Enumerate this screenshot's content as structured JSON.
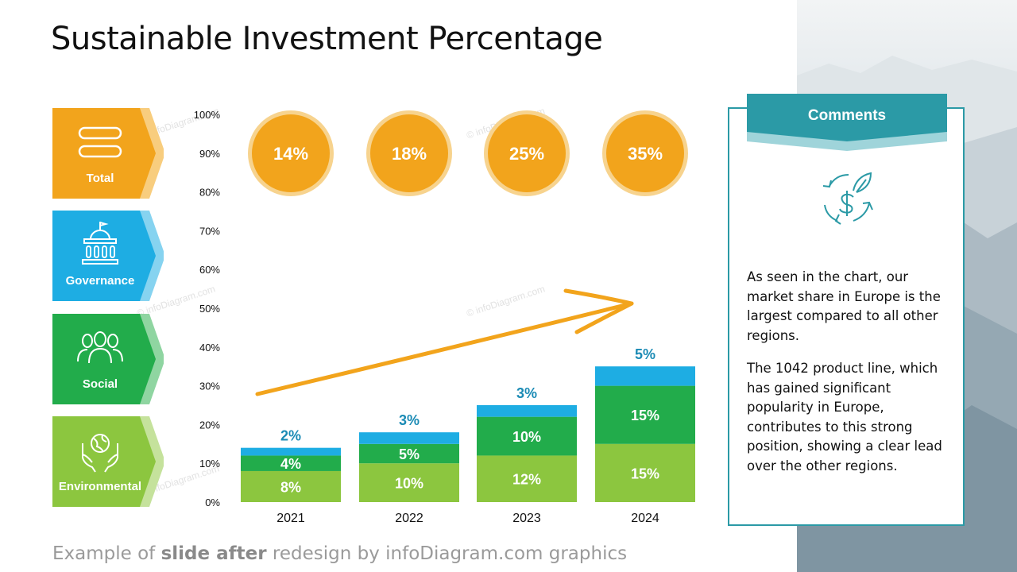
{
  "title": "Sustainable Investment Percentage",
  "footer": {
    "prefix": "Example of ",
    "bold": "slide after",
    "suffix": " redesign by infoDiagram.com graphics"
  },
  "watermark": "© infoDiagram.com",
  "categories": [
    {
      "label": "Total",
      "icon": "equals-bars-icon",
      "color": "#f2a41c",
      "shade": "#f8cd7e"
    },
    {
      "label": "Governance",
      "icon": "government-building-icon",
      "color": "#1eade3",
      "shade": "#86d3f0"
    },
    {
      "label": "Social",
      "icon": "people-group-icon",
      "color": "#22ac4b",
      "shade": "#8fd5a1"
    },
    {
      "label": "Environmental",
      "icon": "globe-hands-icon",
      "color": "#8cc63f",
      "shade": "#c5e29c"
    }
  ],
  "comments": {
    "title": "Comments",
    "icon": "dollar-leaf-cycle-icon",
    "paragraph1": "As seen in the chart, our market share in Europe is the largest compared to all other regions.",
    "paragraph2": "The 1042 product line, which has gained significant popularity in Europe, contributes to this strong position, showing a clear lead over the other regions."
  },
  "chart_data": {
    "type": "bar",
    "stacked": true,
    "categories": [
      "2021",
      "2022",
      "2023",
      "2024"
    ],
    "ylim": [
      0,
      100
    ],
    "yticks": [
      "0%",
      "10%",
      "20%",
      "30%",
      "40%",
      "50%",
      "60%",
      "70%",
      "80%",
      "90%",
      "100%"
    ],
    "series": [
      {
        "name": "Environmental",
        "color": "#8cc63f",
        "values": [
          8,
          10,
          12,
          15
        ],
        "labels": [
          "8%",
          "10%",
          "12%",
          "15%"
        ]
      },
      {
        "name": "Social",
        "color": "#22ac4b",
        "values": [
          4,
          5,
          10,
          15
        ],
        "labels": [
          "4%",
          "5%",
          "10%",
          "15%"
        ]
      },
      {
        "name": "Governance",
        "color": "#1eade3",
        "values": [
          2,
          3,
          3,
          5
        ],
        "labels": [
          "2%",
          "3%",
          "3%",
          "5%"
        ]
      }
    ],
    "totals": {
      "name": "Total",
      "color": "#f2a41c",
      "values": [
        14,
        18,
        25,
        35
      ],
      "labels": [
        "14%",
        "18%",
        "25%",
        "35%"
      ]
    },
    "trend_arrow": true,
    "grid": false
  }
}
